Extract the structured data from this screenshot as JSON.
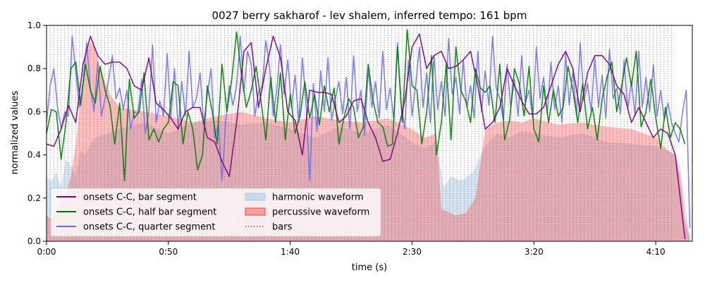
{
  "chart_data": {
    "type": "line",
    "title": "0027 berry sakharof - lev shalem, inferred tempo: 161 bpm",
    "xlabel": "time (s)",
    "ylabel": "normalized values",
    "xlim": [
      0,
      265
    ],
    "ylim": [
      0,
      1
    ],
    "grid": false,
    "legend_position": "lower-left",
    "x_ticks": [
      {
        "value": 0,
        "label": "0:00"
      },
      {
        "value": 50,
        "label": "0:50"
      },
      {
        "value": 100,
        "label": "1:40"
      },
      {
        "value": 150,
        "label": "2:30"
      },
      {
        "value": 200,
        "label": "3:20"
      },
      {
        "value": 250,
        "label": "4:10"
      }
    ],
    "y_ticks": [
      {
        "value": 0.0,
        "label": "0.0"
      },
      {
        "value": 0.2,
        "label": "0.2"
      },
      {
        "value": 0.4,
        "label": "0.4"
      },
      {
        "value": 0.6,
        "label": "0.6"
      },
      {
        "value": 0.8,
        "label": "0.8"
      },
      {
        "value": 1.0,
        "label": "1.0"
      }
    ],
    "bars": {
      "start": 0,
      "end": 257,
      "bpm": 161,
      "beats_per_bar": 4
    },
    "series": [
      {
        "name": "onsets C-C, bar segment",
        "color": "#800080",
        "x": [
          0,
          3,
          6,
          9,
          12,
          15,
          18,
          21,
          24,
          27,
          30,
          33,
          36,
          39,
          42,
          45,
          48,
          51,
          54,
          57,
          60,
          63,
          66,
          69,
          72,
          75,
          78,
          81,
          84,
          87,
          90,
          93,
          96,
          99,
          102,
          105,
          108,
          111,
          114,
          117,
          120,
          123,
          126,
          129,
          132,
          135,
          138,
          141,
          144,
          147,
          150,
          153,
          156,
          159,
          162,
          165,
          168,
          171,
          174,
          177,
          180,
          183,
          186,
          189,
          192,
          195,
          198,
          201,
          204,
          207,
          210,
          213,
          216,
          219,
          222,
          225,
          228,
          231,
          234,
          237,
          240,
          243,
          246,
          249,
          252,
          255,
          258,
          262
        ],
        "values": [
          0.45,
          0.44,
          0.52,
          0.63,
          0.55,
          0.82,
          0.95,
          0.86,
          0.82,
          0.83,
          0.83,
          0.8,
          0.72,
          0.7,
          0.85,
          0.64,
          0.61,
          0.57,
          0.52,
          0.6,
          0.62,
          0.62,
          0.48,
          0.46,
          0.37,
          0.3,
          0.55,
          0.88,
          0.92,
          0.62,
          0.8,
          0.95,
          0.85,
          0.6,
          0.56,
          0.4,
          0.7,
          0.69,
          0.69,
          0.68,
          0.55,
          0.58,
          0.65,
          0.66,
          0.55,
          0.48,
          0.37,
          0.38,
          0.5,
          0.65,
          0.9,
          0.96,
          0.8,
          0.86,
          0.88,
          0.8,
          0.81,
          0.84,
          0.88,
          0.72,
          0.52,
          0.55,
          0.62,
          0.8,
          0.72,
          0.65,
          0.59,
          0.59,
          0.62,
          0.72,
          0.82,
          0.88,
          0.8,
          0.6,
          0.78,
          0.86,
          0.86,
          0.82,
          0.72,
          0.68,
          0.55,
          0.62,
          0.55,
          0.48,
          0.52,
          0.5,
          0.4,
          0.01
        ]
      },
      {
        "name": "onsets C-C, half bar segment",
        "color": "#008000",
        "x": [
          0,
          2,
          4,
          6,
          8,
          10,
          12,
          14,
          16,
          18,
          20,
          22,
          24,
          26,
          28,
          30,
          32,
          34,
          36,
          38,
          40,
          42,
          44,
          46,
          48,
          50,
          52,
          54,
          56,
          58,
          60,
          62,
          64,
          66,
          68,
          70,
          72,
          74,
          76,
          78,
          80,
          82,
          84,
          86,
          88,
          90,
          92,
          94,
          96,
          98,
          100,
          102,
          104,
          106,
          108,
          110,
          112,
          114,
          116,
          118,
          120,
          122,
          124,
          126,
          128,
          130,
          132,
          134,
          136,
          138,
          140,
          142,
          144,
          146,
          148,
          150,
          152,
          154,
          156,
          158,
          160,
          162,
          164,
          166,
          168,
          170,
          172,
          174,
          176,
          178,
          180,
          182,
          184,
          186,
          188,
          190,
          192,
          194,
          196,
          198,
          200,
          202,
          204,
          206,
          208,
          210,
          212,
          214,
          216,
          218,
          220,
          222,
          224,
          226,
          228,
          230,
          232,
          234,
          236,
          238,
          240,
          242,
          244,
          246,
          248,
          250,
          252,
          254,
          256,
          258,
          260,
          262
        ],
        "values": [
          0.5,
          0.61,
          0.6,
          0.38,
          0.55,
          0.8,
          0.83,
          0.63,
          0.82,
          0.7,
          0.64,
          0.81,
          0.7,
          0.63,
          0.45,
          0.64,
          0.28,
          0.75,
          0.57,
          0.6,
          0.78,
          0.47,
          0.52,
          0.46,
          0.52,
          0.55,
          0.74,
          0.72,
          0.45,
          0.6,
          0.52,
          0.33,
          0.4,
          0.72,
          0.6,
          0.45,
          0.82,
          0.6,
          0.75,
          0.97,
          0.77,
          0.62,
          0.7,
          0.81,
          0.65,
          0.47,
          0.76,
          0.55,
          0.78,
          0.47,
          0.68,
          0.5,
          0.58,
          0.74,
          0.57,
          0.68,
          0.54,
          0.72,
          0.6,
          0.71,
          0.45,
          0.57,
          0.66,
          0.62,
          0.48,
          0.53,
          0.82,
          0.65,
          0.55,
          0.53,
          0.44,
          0.45,
          0.9,
          0.55,
          0.98,
          0.72,
          0.7,
          0.45,
          0.6,
          0.86,
          0.4,
          0.55,
          0.82,
          0.47,
          0.9,
          0.7,
          0.65,
          0.55,
          0.8,
          0.71,
          0.69,
          0.72,
          0.55,
          0.82,
          0.47,
          0.56,
          0.8,
          0.73,
          0.58,
          0.81,
          0.52,
          0.46,
          0.72,
          0.55,
          0.7,
          0.58,
          0.62,
          0.81,
          0.7,
          0.55,
          0.73,
          0.52,
          0.62,
          0.47,
          0.66,
          0.76,
          0.83,
          0.6,
          0.72,
          0.85,
          0.72,
          0.88,
          0.53,
          0.6,
          0.75,
          0.57,
          0.43,
          0.62,
          0.48,
          0.55,
          0.52,
          0.45
        ]
      },
      {
        "name": "onsets C-C, quarter segment",
        "color": "#6b6bf2",
        "x": [
          0,
          1.5,
          3,
          4.5,
          6,
          7.5,
          9,
          10.5,
          12,
          13.5,
          15,
          16.5,
          18,
          19.5,
          21,
          22.5,
          24,
          25.5,
          27,
          28.5,
          30,
          31.5,
          33,
          34.5,
          36,
          37.5,
          39,
          40.5,
          42,
          43.5,
          45,
          46.5,
          48,
          49.5,
          51,
          52.5,
          54,
          55.5,
          57,
          58.5,
          60,
          61.5,
          63,
          64.5,
          66,
          67.5,
          69,
          70.5,
          72,
          73.5,
          75,
          76.5,
          78,
          79.5,
          81,
          82.5,
          84,
          85.5,
          87,
          88.5,
          90,
          91.5,
          93,
          94.5,
          96,
          97.5,
          99,
          100.5,
          102,
          103.5,
          105,
          106.5,
          108,
          109.5,
          111,
          112.5,
          114,
          115.5,
          117,
          118.5,
          120,
          121.5,
          123,
          124.5,
          126,
          127.5,
          129,
          130.5,
          132,
          133.5,
          135,
          136.5,
          138,
          139.5,
          141,
          142.5,
          144,
          145.5,
          147,
          148.5,
          150,
          151.5,
          153,
          154.5,
          156,
          157.5,
          159,
          160.5,
          162,
          163.5,
          165,
          166.5,
          168,
          169.5,
          171,
          172.5,
          174,
          175.5,
          177,
          178.5,
          180,
          181.5,
          183,
          184.5,
          186,
          187.5,
          189,
          190.5,
          192,
          193.5,
          195,
          196.5,
          198,
          199.5,
          201,
          202.5,
          204,
          205.5,
          207,
          208.5,
          210,
          211.5,
          213,
          214.5,
          216,
          217.5,
          219,
          220.5,
          222,
          223.5,
          225,
          226.5,
          228,
          229.5,
          231,
          232.5,
          234,
          235.5,
          237,
          238.5,
          240,
          241.5,
          243,
          244.5,
          246,
          247.5,
          249,
          250.5,
          252,
          253.5,
          255,
          256.5,
          258,
          259.5,
          261,
          262.5,
          264
        ],
        "values": [
          0.55,
          0.72,
          0.8,
          0.62,
          0.52,
          0.6,
          0.58,
          0.95,
          0.78,
          0.62,
          0.74,
          0.92,
          0.71,
          0.6,
          0.83,
          0.58,
          0.66,
          0.75,
          0.86,
          0.66,
          0.71,
          0.61,
          0.7,
          0.52,
          0.6,
          0.59,
          0.75,
          0.5,
          0.6,
          0.91,
          0.55,
          0.65,
          0.58,
          0.87,
          0.57,
          0.8,
          0.52,
          0.74,
          0.58,
          0.88,
          0.62,
          0.66,
          0.78,
          0.54,
          0.68,
          0.8,
          0.48,
          0.54,
          0.28,
          0.55,
          0.72,
          0.63,
          0.72,
          0.95,
          0.69,
          0.88,
          0.82,
          0.58,
          0.69,
          0.72,
          0.93,
          0.81,
          0.58,
          0.7,
          0.91,
          0.68,
          0.84,
          0.62,
          0.77,
          0.55,
          0.85,
          0.64,
          0.28,
          0.73,
          0.51,
          0.79,
          0.6,
          0.85,
          0.56,
          0.66,
          0.74,
          0.59,
          0.76,
          0.52,
          0.86,
          0.6,
          0.7,
          0.49,
          0.8,
          0.62,
          0.74,
          0.57,
          0.88,
          0.61,
          0.71,
          0.56,
          0.92,
          0.64,
          0.52,
          0.84,
          0.58,
          0.73,
          0.9,
          0.62,
          0.78,
          0.55,
          0.86,
          0.61,
          0.74,
          0.58,
          0.94,
          0.68,
          0.76,
          0.59,
          0.84,
          0.62,
          0.72,
          0.57,
          0.88,
          0.6,
          0.79,
          0.63,
          0.95,
          0.71,
          0.66,
          0.56,
          0.82,
          0.62,
          0.75,
          0.58,
          0.86,
          0.64,
          0.7,
          0.57,
          0.9,
          0.66,
          0.76,
          0.59,
          0.83,
          0.61,
          0.72,
          0.55,
          0.87,
          0.63,
          0.79,
          0.58,
          0.92,
          0.65,
          0.73,
          0.6,
          0.85,
          0.62,
          0.77,
          0.57,
          0.89,
          0.66,
          0.71,
          0.59,
          0.84,
          0.61,
          0.74,
          0.58,
          0.88,
          0.62,
          0.76,
          0.6,
          0.82,
          0.58,
          0.7,
          0.56,
          0.64,
          0.55,
          0.5,
          0.46,
          0.6,
          0.7,
          0.06
        ]
      }
    ],
    "waveforms": [
      {
        "name": "harmonic waveform",
        "color": "#a9cce3",
        "opacity": 0.5,
        "x": [
          0,
          2,
          4,
          6,
          8,
          10,
          12,
          14,
          16,
          18,
          20,
          30,
          40,
          50,
          60,
          70,
          80,
          90,
          100,
          110,
          120,
          130,
          140,
          150,
          155,
          160,
          163,
          166,
          170,
          175,
          180,
          185,
          190,
          195,
          200,
          210,
          220,
          230,
          240,
          250,
          255,
          258,
          260,
          262,
          264
        ],
        "values": [
          0.3,
          0.28,
          0.32,
          0.25,
          0.38,
          0.35,
          0.3,
          0.42,
          0.4,
          0.45,
          0.48,
          0.52,
          0.55,
          0.5,
          0.55,
          0.56,
          0.54,
          0.55,
          0.52,
          0.48,
          0.53,
          0.5,
          0.54,
          0.46,
          0.43,
          0.46,
          0.25,
          0.3,
          0.28,
          0.32,
          0.44,
          0.5,
          0.48,
          0.51,
          0.5,
          0.48,
          0.5,
          0.46,
          0.45,
          0.44,
          0.42,
          0.4,
          0.35,
          0.18,
          0.02
        ]
      },
      {
        "name": "percussive waveform",
        "color": "#ff4040",
        "opacity": 0.35,
        "x": [
          0,
          2,
          4,
          6,
          8,
          10,
          12,
          14,
          16,
          18,
          20,
          22,
          26,
          30,
          40,
          50,
          60,
          70,
          80,
          90,
          100,
          110,
          120,
          130,
          140,
          150,
          155,
          160,
          162,
          164,
          168,
          172,
          176,
          180,
          185,
          190,
          195,
          200,
          210,
          220,
          230,
          240,
          250,
          255,
          258,
          260,
          262,
          264
        ],
        "values": [
          0.12,
          0.1,
          0.15,
          0.18,
          0.22,
          0.3,
          0.45,
          0.65,
          0.85,
          0.92,
          0.9,
          0.8,
          0.68,
          0.62,
          0.6,
          0.58,
          0.55,
          0.58,
          0.6,
          0.57,
          0.55,
          0.58,
          0.56,
          0.55,
          0.57,
          0.52,
          0.48,
          0.5,
          0.15,
          0.14,
          0.12,
          0.13,
          0.2,
          0.52,
          0.55,
          0.56,
          0.55,
          0.57,
          0.54,
          0.55,
          0.53,
          0.52,
          0.48,
          0.42,
          0.4,
          0.3,
          0.1,
          0.02
        ]
      }
    ],
    "legend": [
      {
        "label": "onsets C-C, bar segment",
        "kind": "line",
        "color": "#800080"
      },
      {
        "label": "onsets C-C, half bar segment",
        "kind": "line",
        "color": "#008000"
      },
      {
        "label": "onsets C-C, quarter segment",
        "kind": "line",
        "color": "#6b6bf2"
      },
      {
        "label": "harmonic waveform",
        "kind": "patch",
        "color": "#a9cce3"
      },
      {
        "label": "percussive waveform",
        "kind": "patch",
        "color": "#ff4040"
      },
      {
        "label": "bars",
        "kind": "dotted",
        "color": "#808080"
      }
    ]
  }
}
